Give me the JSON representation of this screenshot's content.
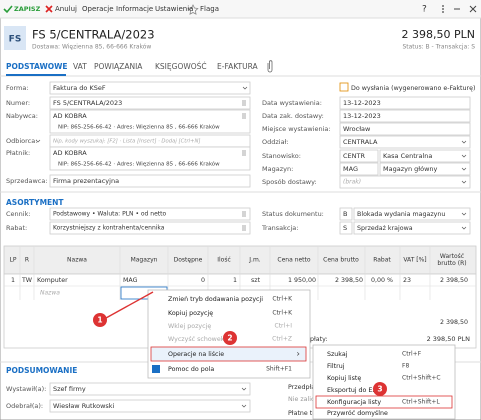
{
  "toolbar": {
    "save": "ZAPISZ",
    "cancel": "Anuluj",
    "items": [
      "Operacje",
      "Informacje",
      "Ustawienia"
    ],
    "flag": "Flaga",
    "help": "?"
  },
  "header": {
    "icon": "FS",
    "title": "FS 5/CENTRALA/2023",
    "subtitle": "Dostawa: Więzienna 85, 66-666 Kraków",
    "amount": "2 398,50 PLN",
    "status": "Status: B - Transakcja: S"
  },
  "tabs": [
    "PODSTAWOWE",
    "VAT",
    "POWIĄZANIA",
    "KSIĘGOWOŚĆ",
    "E-FAKTURA"
  ],
  "left_fields": [
    {
      "label": "Forma:",
      "value": "Faktura do KSeF"
    },
    {
      "label": "Numer:",
      "value": "FS 5/CENTRALA/2023"
    },
    {
      "label": "Nabywca:",
      "value": "AD KOBRA",
      "details": "NIP: 865-256-66-42 · Adres: Więzienna 85 , 66-666 Kraków"
    },
    {
      "label": "Odbiorca:",
      "placeholder": "Nip, kody wyszukaj: [F2] · Lista [Insert] · Dodaj [Ctrl+N]"
    },
    {
      "label": "Płatnik:",
      "value": "AD KOBRA",
      "details": "NIP: 865-256-66-42 · Adres: Więzienna 85 , 66-666 Kraków"
    },
    {
      "label": "Sprzedawca:",
      "value": "Firma prezentacyjna"
    }
  ],
  "ksef_status": "Do wysłania (wygenerowano e-Fakturę)",
  "right_fields": [
    {
      "label": "Data wystawienia:",
      "value": "13-12-2023"
    },
    {
      "label": "Data zak. dostawy:",
      "value": "13-12-2023"
    },
    {
      "label": "Miejsce wystawienia:",
      "value": "Wrocław"
    },
    {
      "label": "Oddział:",
      "value": "CENTRALA"
    },
    {
      "label": "Stanowisko:",
      "code": "CENTR",
      "value": "Kasa Centralna"
    },
    {
      "label": "Magazyn:",
      "code": "MAG",
      "value": "Magazyn główny"
    },
    {
      "label": "Sposób dostawy:",
      "placeholder": "(brak)"
    }
  ],
  "assortment": {
    "title": "ASORTYMENT",
    "left": [
      {
        "label": "Cennik:",
        "value": "Podstawowy • Waluta: PLN • od netto"
      },
      {
        "label": "Rabat:",
        "value": "Korzystniejszy z kontrahenta/cennika"
      }
    ],
    "right": [
      {
        "label": "Status dokumentu:",
        "code": "B",
        "value": "Blokada wydania magazynu"
      },
      {
        "label": "Transakcja:",
        "code": "S",
        "value": "Sprzedaż krajowa"
      }
    ]
  },
  "table": {
    "columns": [
      "LP",
      "R",
      "Nazwa",
      "Magazyn",
      "Dostępne",
      "Ilość",
      "J.m.",
      "Cena netto",
      "Cena brutto",
      "Rabat",
      "VAT [%]",
      "Wartość brutto (R)"
    ],
    "rows": [
      [
        "1",
        "TW",
        "Komputer",
        "MAG",
        "0",
        "1",
        "szt",
        "1 950,00",
        "2 398,50",
        "0,00 %",
        "23",
        "2 398,50"
      ]
    ],
    "placeholder": "Nazwa"
  },
  "context_menu": [
    {
      "label": "Zmień tryb dodawania pozycji",
      "shortcut": "Ctrl+K"
    },
    {
      "label": "Kopiuj pozycję",
      "shortcut": "Ctrl+K"
    },
    {
      "label": "Wklej pozycję",
      "shortcut": "Ctrl+I"
    },
    {
      "label": "Wyczyść schowek",
      "shortcut": "Ctrl+Z"
    },
    {
      "label": "Operacje na liście",
      "shortcut": "›"
    },
    {
      "label": "Pomoc do pola",
      "shortcut": "Shift+F1"
    }
  ],
  "submenu": [
    {
      "label": "Szukaj",
      "shortcut": "Ctrl+F"
    },
    {
      "label": "Filtruj",
      "shortcut": "F8"
    },
    {
      "label": "Kopiuj listę",
      "shortcut": "Ctrl+Shift+C"
    },
    {
      "label": "Eksportuj do Ex"
    },
    {
      "label": "Konfiguracja listy",
      "shortcut": "Ctrl+Shift+L"
    },
    {
      "label": "Przywróć domyślne"
    }
  ],
  "callouts": [
    "1",
    "2",
    "3"
  ],
  "totals": {
    "sum": "2 398,50",
    "label": "płaty:",
    "amount": "2 398,50 PLN"
  },
  "summary": {
    "title": "PODSUMOWANIE",
    "fields": [
      {
        "label": "Wystawił(a):",
        "value": "Szef firmy"
      },
      {
        "label": "Odebrał(a):",
        "value": "Wiesław Rutkowski"
      }
    ],
    "side": [
      "Przedpłaty:",
      "Nie zalic",
      "Płatne teraz"
    ]
  }
}
